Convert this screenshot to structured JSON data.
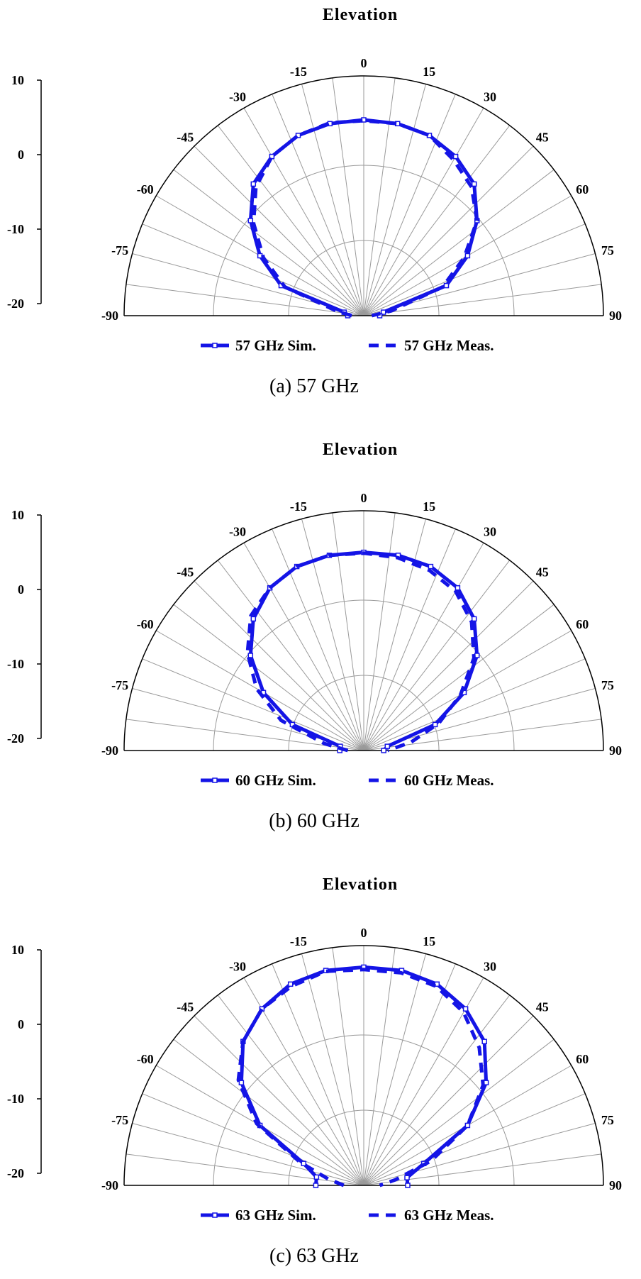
{
  "colors": {
    "trace": "#1414e6",
    "grid": "#9a9a9a",
    "axis": "#000000"
  },
  "chart_data": [
    {
      "type": "polar-line",
      "panel": "a",
      "title": "Elevation",
      "caption": "(a) 57 GHz",
      "radial_range": [
        -20,
        10
      ],
      "radial_ticks": [
        "10",
        "0",
        "-10",
        "-20"
      ],
      "angle_ticks": [
        "-90",
        "-75",
        "-60",
        "-45",
        "-30",
        "-15",
        "0",
        "15",
        "30",
        "45",
        "60",
        "75",
        "90"
      ],
      "angles": [
        -90,
        -80,
        -70,
        -60,
        -50,
        -40,
        -30,
        -20,
        -10,
        0,
        10,
        20,
        30,
        40,
        50,
        60,
        70,
        80,
        90
      ],
      "legend": [
        "57 GHz Sim.",
        "57 GHz Meas."
      ],
      "series": [
        {
          "name": "57 GHz Sim.",
          "style": "solid-marker",
          "values": [
            -18.0,
            -17.5,
            -9.0,
            -5.0,
            -1.5,
            1.5,
            3.0,
            4.0,
            4.4,
            4.5,
            4.4,
            4.0,
            3.0,
            1.5,
            -1.5,
            -5.0,
            -9.0,
            -17.5,
            -18.0
          ]
        },
        {
          "name": "57 GHz Meas.",
          "style": "dashed",
          "values": [
            -18.5,
            -16.5,
            -9.5,
            -5.5,
            -2.0,
            1.0,
            3.0,
            4.0,
            4.5,
            4.4,
            4.4,
            4.0,
            2.5,
            1.0,
            -1.5,
            -5.5,
            -9.5,
            -16.5,
            -19.0
          ]
        }
      ]
    },
    {
      "type": "polar-line",
      "panel": "b",
      "title": "Elevation",
      "caption": "(b) 60 GHz",
      "radial_range": [
        -20,
        10
      ],
      "radial_ticks": [
        "10",
        "0",
        "-10",
        "-20"
      ],
      "angle_ticks": [
        "-90",
        "-75",
        "-60",
        "-45",
        "-30",
        "-15",
        "0",
        "15",
        "30",
        "45",
        "60",
        "75",
        "90"
      ],
      "angles": [
        -90,
        -80,
        -70,
        -60,
        -50,
        -40,
        -30,
        -20,
        -10,
        0,
        10,
        20,
        30,
        40,
        50,
        60,
        70,
        80,
        90
      ],
      "legend": [
        "60 GHz Sim.",
        "60 GHz Meas."
      ],
      "series": [
        {
          "name": "60 GHz Sim.",
          "style": "solid-marker",
          "values": [
            -17.0,
            -17.0,
            -10.5,
            -5.5,
            -1.5,
            1.5,
            3.5,
            4.5,
            4.8,
            4.8,
            4.8,
            4.5,
            3.5,
            1.5,
            -1.5,
            -5.5,
            -10.5,
            -17.0,
            -17.5
          ]
        },
        {
          "name": "60 GHz Meas.",
          "style": "dashed",
          "values": [
            -18.0,
            -15.0,
            -9.0,
            -4.5,
            -1.0,
            2.0,
            3.5,
            4.5,
            4.8,
            4.7,
            4.5,
            4.0,
            3.0,
            1.0,
            -2.0,
            -6.0,
            -10.0,
            -14.0,
            -17.0
          ]
        }
      ]
    },
    {
      "type": "polar-line",
      "panel": "c",
      "title": "Elevation",
      "caption": "(c) 63 GHz",
      "radial_range": [
        -20,
        10
      ],
      "radial_ticks": [
        "10",
        "0",
        "-10",
        "-20"
      ],
      "angle_ticks": [
        "-90",
        "-75",
        "-60",
        "-45",
        "-30",
        "-15",
        "0",
        "15",
        "30",
        "45",
        "60",
        "75",
        "90"
      ],
      "angles": [
        -90,
        -80,
        -70,
        -60,
        -50,
        -40,
        -30,
        -20,
        -10,
        0,
        10,
        20,
        30,
        40,
        50,
        60,
        70,
        80,
        90
      ],
      "legend": [
        "63 GHz Sim.",
        "63 GHz Meas."
      ],
      "series": [
        {
          "name": "63 GHz Sim.",
          "style": "solid-marker",
          "values": [
            -14.0,
            -14.0,
            -12.0,
            -5.0,
            0.0,
            3.5,
            5.5,
            6.8,
            7.3,
            7.3,
            7.3,
            6.8,
            5.5,
            3.5,
            0.0,
            -5.0,
            -12.0,
            -14.5,
            -14.5
          ]
        },
        {
          "name": "63 GHz Meas.",
          "style": "dashed",
          "values": [
            -17.5,
            -15.5,
            -11.5,
            -4.5,
            0.5,
            3.5,
            5.5,
            6.5,
            7.2,
            7.0,
            7.0,
            6.5,
            5.0,
            2.5,
            -0.5,
            -5.0,
            -11.0,
            -16.0,
            -18.0
          ]
        }
      ]
    }
  ]
}
